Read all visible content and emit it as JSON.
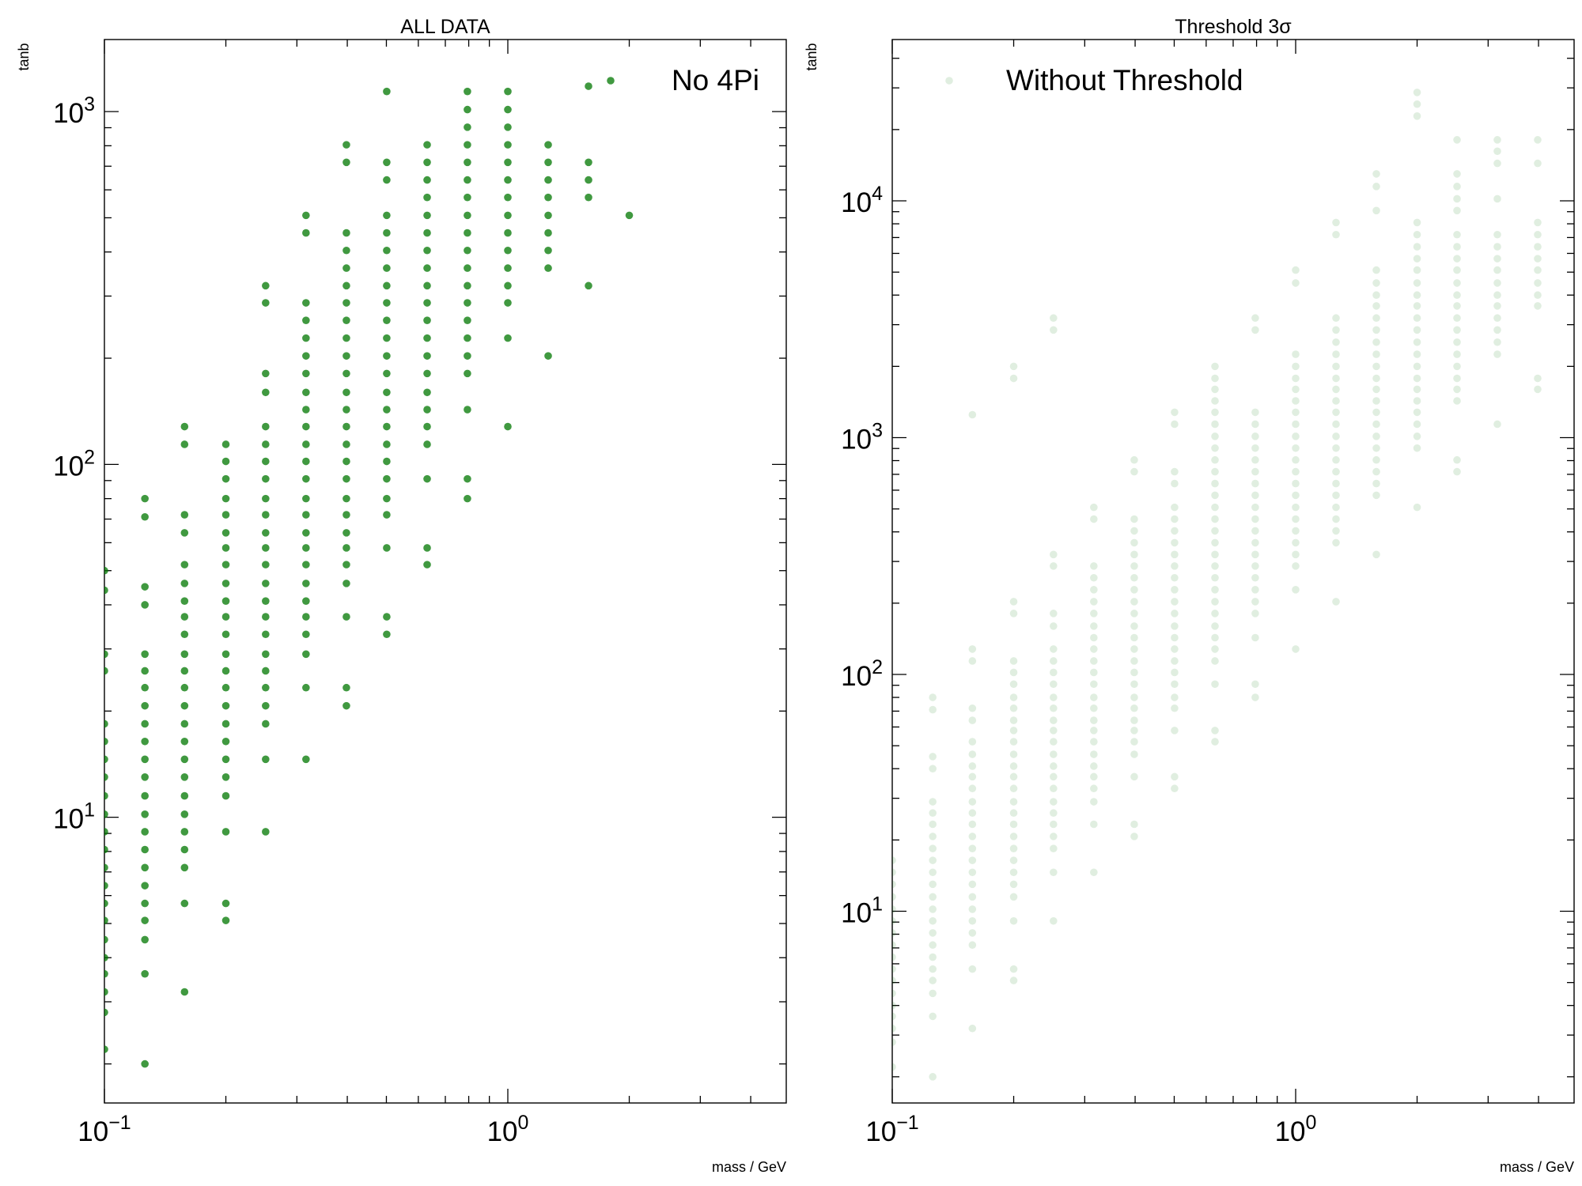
{
  "figure": {
    "background": "#ffffff"
  },
  "chart_data": [
    {
      "type": "scatter",
      "title": "ALL DATA",
      "xlabel": "mass / GeV",
      "ylabel": "tanb",
      "xscale": "log",
      "yscale": "log",
      "xlim": [
        0.1,
        4.9
      ],
      "ylim": [
        1.55,
        1600
      ],
      "xticks": [
        {
          "value": 0.1,
          "base": "10",
          "exp": "−1"
        },
        {
          "value": 1,
          "base": "10",
          "exp": "0"
        }
      ],
      "yticks": [
        {
          "value": 10,
          "base": "10",
          "exp": "1"
        },
        {
          "value": 100,
          "base": "10",
          "exp": "2"
        },
        {
          "value": 1000,
          "base": "10",
          "exp": "3"
        }
      ],
      "grid": false,
      "legend_position": "top-right",
      "series": [
        {
          "name": "No 4Pi",
          "color": "#007700",
          "opacity": 0.75,
          "x_values": [
            0.1,
            0.126,
            0.158,
            0.2,
            0.251,
            0.316,
            0.398,
            0.501,
            0.631,
            0.794,
            1.0,
            1.259,
            1.585,
            2.0
          ],
          "columns": [
            [
              2.2,
              2.8,
              3.2,
              3.6,
              4.0,
              4.5,
              5.1,
              5.7,
              6.4,
              7.2,
              8.1,
              9.1,
              10.2,
              11.5,
              13.0,
              14.6,
              16.4,
              18.4,
              26,
              29,
              44,
              50
            ],
            [
              2.0,
              3.6,
              4.5,
              5.1,
              5.7,
              6.4,
              7.2,
              8.1,
              9.1,
              10.2,
              11.5,
              13.0,
              14.6,
              16.4,
              18.4,
              20.7,
              23.3,
              26,
              29,
              40,
              45,
              71,
              80
            ],
            [
              3.2,
              5.7,
              7.2,
              8.1,
              9.1,
              10.2,
              11.5,
              13.0,
              14.6,
              16.4,
              18.4,
              20.7,
              23.3,
              26,
              29,
              33,
              37,
              41,
              46,
              52,
              64,
              72,
              114,
              128
            ],
            [
              5.1,
              5.7,
              9.1,
              11.5,
              13.0,
              14.6,
              16.4,
              18.4,
              20.7,
              23.3,
              26,
              29,
              33,
              37,
              41,
              46,
              52,
              58,
              64,
              72,
              80,
              91,
              102,
              114
            ],
            [
              9.1,
              14.6,
              18.4,
              20.7,
              23.3,
              26,
              29,
              33,
              37,
              41,
              46,
              52,
              58,
              64,
              72,
              80,
              91,
              102,
              114,
              128,
              160,
              181,
              287,
              321
            ],
            [
              14.6,
              23.3,
              29,
              33,
              37,
              41,
              46,
              52,
              58,
              64,
              72,
              80,
              91,
              102,
              114,
              128,
              143,
              160,
              181,
              203,
              228,
              256,
              287,
              453,
              508
            ],
            [
              20.7,
              23.3,
              37,
              46,
              52,
              58,
              64,
              72,
              80,
              91,
              102,
              114,
              128,
              143,
              160,
              181,
              203,
              228,
              256,
              287,
              321,
              360,
              404,
              453,
              718,
              805
            ],
            [
              33,
              37,
              58,
              72,
              80,
              91,
              102,
              114,
              128,
              143,
              160,
              181,
              203,
              228,
              256,
              287,
              321,
              360,
              404,
              453,
              508,
              640,
              718,
              1140
            ],
            [
              52,
              58,
              91,
              114,
              128,
              143,
              160,
              181,
              203,
              228,
              256,
              287,
              321,
              360,
              404,
              453,
              508,
              571,
              640,
              718,
              805
            ],
            [
              80,
              91,
              143,
              181,
              203,
              228,
              256,
              287,
              321,
              360,
              404,
              453,
              508,
              571,
              640,
              718,
              805,
              903,
              1013,
              1140
            ],
            [
              128,
              228,
              287,
              321,
              360,
              404,
              453,
              508,
              571,
              640,
              718,
              805,
              903,
              1013,
              1140
            ],
            [
              203,
              360,
              404,
              453,
              508,
              571,
              640,
              718,
              805
            ],
            [
              321,
              571,
              640,
              718
            ],
            [
              508
            ]
          ],
          "extra_points": [
            [
              1.585,
              1180
            ]
          ]
        }
      ]
    },
    {
      "type": "scatter",
      "title": "Threshold 3σ",
      "xlabel": "mass / GeV",
      "ylabel": "tanb",
      "xscale": "log",
      "yscale": "log",
      "xlim": [
        0.1,
        4.9
      ],
      "ylim": [
        1.55,
        48000
      ],
      "xticks": [
        {
          "value": 0.1,
          "base": "10",
          "exp": "−1"
        },
        {
          "value": 1,
          "base": "10",
          "exp": "0"
        }
      ],
      "yticks": [
        {
          "value": 10,
          "base": "10",
          "exp": "1"
        },
        {
          "value": 100,
          "base": "10",
          "exp": "2"
        },
        {
          "value": 1000,
          "base": "10",
          "exp": "3"
        },
        {
          "value": 10000,
          "base": "10",
          "exp": "4"
        }
      ],
      "grid": false,
      "legend_position": "top-left",
      "series": [
        {
          "name": "Without Threshold",
          "color": "#007700",
          "opacity": 0.12,
          "x_values": [
            0.1,
            0.126,
            0.158,
            0.2,
            0.251,
            0.316,
            0.398,
            0.501,
            0.631,
            0.794,
            1.0,
            1.259,
            1.585,
            2.0,
            2.512,
            3.162,
            3.981
          ],
          "columns": [
            [
              2.2,
              2.8,
              3.2,
              3.6,
              4.0,
              4.5,
              5.1,
              5.7,
              6.4,
              7.2,
              8.1,
              9.1,
              10.2,
              11.5,
              13.0,
              14.6,
              16.4
            ],
            [
              2.0,
              3.6,
              4.5,
              5.1,
              5.7,
              6.4,
              7.2,
              8.1,
              9.1,
              10.2,
              11.5,
              13.0,
              14.6,
              16.4,
              18.4,
              20.7,
              23.3,
              26,
              29,
              40,
              45,
              71,
              80
            ],
            [
              3.2,
              5.7,
              7.2,
              8.1,
              9.1,
              10.2,
              11.5,
              13.0,
              14.6,
              16.4,
              18.4,
              20.7,
              23.3,
              26,
              29,
              33,
              37,
              41,
              46,
              52,
              64,
              72,
              114,
              128,
              1250
            ],
            [
              5.1,
              5.7,
              9.1,
              11.5,
              13.0,
              14.6,
              16.4,
              18.4,
              20.7,
              23.3,
              26,
              29,
              33,
              37,
              41,
              46,
              52,
              58,
              64,
              72,
              80,
              91,
              102,
              114,
              181,
              203,
              1780,
              2000
            ],
            [
              9.1,
              14.6,
              18.4,
              20.7,
              23.3,
              26,
              29,
              33,
              37,
              41,
              46,
              52,
              58,
              64,
              72,
              80,
              91,
              102,
              114,
              128,
              160,
              181,
              287,
              321,
              2850,
              3200
            ],
            [
              14.6,
              23.3,
              29,
              33,
              37,
              41,
              46,
              52,
              58,
              64,
              72,
              80,
              91,
              102,
              114,
              128,
              143,
              160,
              181,
              203,
              228,
              256,
              287,
              453,
              508
            ],
            [
              20.7,
              23.3,
              37,
              46,
              52,
              58,
              64,
              72,
              80,
              91,
              102,
              114,
              128,
              143,
              160,
              181,
              203,
              228,
              256,
              287,
              321,
              360,
              404,
              453,
              718,
              805
            ],
            [
              33,
              37,
              58,
              72,
              80,
              91,
              102,
              114,
              128,
              143,
              160,
              181,
              203,
              228,
              256,
              287,
              321,
              360,
              404,
              453,
              508,
              640,
              718,
              1140,
              1280
            ],
            [
              52,
              58,
              91,
              114,
              128,
              143,
              160,
              181,
              203,
              228,
              256,
              287,
              321,
              360,
              404,
              453,
              508,
              571,
              640,
              718,
              805,
              903,
              1013,
              1140,
              1280,
              1430,
              1600,
              1780,
              2000
            ],
            [
              80,
              91,
              143,
              181,
              203,
              228,
              256,
              287,
              321,
              360,
              404,
              453,
              508,
              571,
              640,
              718,
              805,
              903,
              1013,
              1140,
              1280,
              2850,
              3200
            ],
            [
              128,
              228,
              287,
              321,
              360,
              404,
              453,
              508,
              571,
              640,
              718,
              805,
              903,
              1013,
              1140,
              1280,
              1430,
              1600,
              1780,
              2000,
              2250,
              4500,
              5100
            ],
            [
              203,
              360,
              404,
              453,
              508,
              571,
              640,
              718,
              805,
              903,
              1013,
              1140,
              1280,
              1430,
              1600,
              1780,
              2000,
              2250,
              2530,
              2850,
              3200,
              7200,
              8100
            ],
            [
              321,
              571,
              640,
              718,
              805,
              903,
              1013,
              1140,
              1280,
              1430,
              1600,
              1780,
              2000,
              2250,
              2530,
              2850,
              3200,
              3600,
              4000,
              4500,
              5100,
              9100,
              11500,
              13000
            ],
            [
              508,
              903,
              1013,
              1140,
              1280,
              1430,
              1600,
              1780,
              2000,
              2250,
              2530,
              2850,
              3200,
              3600,
              4000,
              4500,
              5100,
              5700,
              6400,
              7200,
              8100,
              22800,
              25600,
              28700
            ],
            [
              718,
              805,
              1430,
              1600,
              1780,
              2000,
              2250,
              2530,
              2850,
              3200,
              3600,
              4000,
              4500,
              5100,
              5700,
              6400,
              7200,
              9100,
              10200,
              11500,
              13000,
              18100
            ],
            [
              1140,
              2250,
              2530,
              2850,
              3200,
              3600,
              4000,
              4500,
              5100,
              5700,
              6400,
              7200,
              10200,
              14400,
              16200,
              18100
            ],
            [
              1600,
              1780,
              3600,
              4000,
              4500,
              5100,
              5700,
              6400,
              7200,
              8100,
              14400,
              18100
            ]
          ],
          "extra_points": []
        }
      ]
    }
  ]
}
